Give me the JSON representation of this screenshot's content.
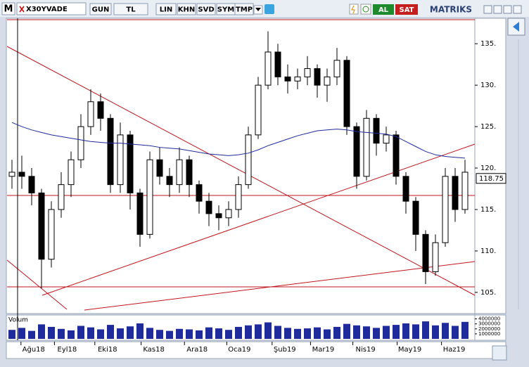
{
  "toolbar": {
    "symbol_menu": "M",
    "symbol": "X30YVADE",
    "buttons": [
      "GUN",
      "TL",
      "LIN",
      "KHN",
      "SVD",
      "SYM",
      "TMP"
    ],
    "buy": "AL",
    "sell": "SAT",
    "brand": "MATRIKS"
  },
  "chart_data": {
    "type": "candlestick",
    "open": [
      119,
      119.5,
      119,
      117,
      109,
      115,
      118,
      121,
      125,
      128,
      126,
      118,
      124,
      117,
      112,
      121,
      119,
      118,
      121,
      118,
      116,
      114.5,
      114,
      115,
      118,
      124,
      130,
      134,
      131,
      130.5,
      131,
      132,
      130,
      131,
      133,
      125,
      119,
      126,
      123,
      124,
      119,
      116,
      112,
      107.5,
      111,
      119,
      115
    ],
    "high": [
      121,
      121.5,
      120,
      117.5,
      116,
      119.5,
      122,
      126.5,
      129.5,
      129,
      126.5,
      125.5,
      124.5,
      117.5,
      122,
      122.5,
      120,
      122.5,
      121.5,
      118.5,
      117,
      115.5,
      116,
      119,
      125,
      131,
      136.5,
      135,
      132.5,
      132,
      133.5,
      132.5,
      132,
      134.5,
      133.5,
      125.5,
      127,
      126.5,
      125,
      124.5,
      119.5,
      116.5,
      112.5,
      112,
      120,
      120,
      121
    ],
    "low": [
      117.5,
      117.5,
      115.5,
      105.5,
      108,
      114,
      116.5,
      120,
      124,
      124.5,
      117,
      117,
      115,
      110.5,
      111.5,
      118,
      116.5,
      117,
      116.5,
      114.5,
      113,
      112.5,
      113,
      114,
      117.5,
      123.5,
      129.5,
      130,
      129,
      129.5,
      130,
      128.5,
      128,
      130,
      124,
      117.5,
      118.5,
      121.5,
      122,
      118,
      114.5,
      110,
      106,
      107,
      110.5,
      113.5,
      114.5
    ],
    "close": [
      119.5,
      119,
      117,
      109,
      115,
      118,
      121,
      125,
      128,
      126,
      118,
      124,
      117,
      112,
      121,
      119,
      118,
      121,
      118,
      116,
      114.5,
      114,
      115,
      118,
      124,
      130,
      134,
      131,
      130.5,
      131,
      132,
      130,
      131,
      133,
      125,
      119,
      126,
      123,
      124,
      119,
      116,
      112,
      107.5,
      111,
      119,
      115,
      119.5
    ],
    "moving_average": {
      "color": "#1f2a9c",
      "values": [
        125.5,
        125,
        124.6,
        124.3,
        124,
        123.8,
        123.6,
        123.4,
        123.2,
        123.1,
        123,
        123,
        122.9,
        122.8,
        122.7,
        122.5,
        122.4,
        122.3,
        122.1,
        121.9,
        121.7,
        121.6,
        121.5,
        121.6,
        121.8,
        122.2,
        122.7,
        123.1,
        123.5,
        123.9,
        124.2,
        124.5,
        124.6,
        124.7,
        124.6,
        124.4,
        124.3,
        124.2,
        124.1,
        123.8,
        123.2,
        122.6,
        122,
        121.6,
        121.4,
        121.3,
        121.2
      ]
    },
    "last_price": 118.75,
    "xlim": [
      -0.5,
      47
    ],
    "xticks": [
      {
        "value": 2.2,
        "label": "Ağu18"
      },
      {
        "value": 5.6,
        "label": "Eyl18"
      },
      {
        "value": 9.7,
        "label": "Eki18"
      },
      {
        "value": 14.4,
        "label": "Kas18"
      },
      {
        "value": 18.8,
        "label": "Ara18"
      },
      {
        "value": 23.1,
        "label": "Oca19"
      },
      {
        "value": 27.7,
        "label": "Şub19"
      },
      {
        "value": 31.6,
        "label": "Mar19"
      },
      {
        "value": 35.9,
        "label": "Nis19"
      },
      {
        "value": 40.4,
        "label": "May19"
      },
      {
        "value": 44.9,
        "label": "Haz19"
      }
    ],
    "ylim": [
      102.7,
      137.9
    ],
    "yticks": [
      {
        "value": 105,
        "label": "105."
      },
      {
        "value": 110,
        "label": "110."
      },
      {
        "value": 115,
        "label": "115."
      },
      {
        "value": 120,
        "label": "120."
      },
      {
        "value": 125,
        "label": "125."
      },
      {
        "value": 130,
        "label": "130."
      },
      {
        "value": 135,
        "label": "135."
      }
    ],
    "volume": {
      "label": "Volum",
      "color": "#1f2a9c",
      "ylim": [
        0,
        4500000
      ],
      "yticks": [
        1000000,
        2000000,
        3000000,
        4000000
      ],
      "values": [
        1800000,
        2200000,
        1600000,
        2900000,
        2400000,
        2000000,
        1700000,
        2600000,
        2300000,
        1900000,
        2800000,
        2100000,
        2500000,
        3100000,
        2200000,
        1800000,
        1600000,
        2000000,
        1900000,
        1700000,
        2300000,
        2100000,
        1800000,
        2400000,
        2700000,
        2900000,
        3300000,
        2600000,
        2200000,
        2000000,
        2100000,
        2300000,
        1900000,
        2400000,
        3000000,
        2700000,
        2500000,
        2200000,
        2600000,
        2800000,
        3100000,
        2900000,
        3500000,
        2700000,
        3200000,
        2600000,
        3400000
      ]
    }
  }
}
